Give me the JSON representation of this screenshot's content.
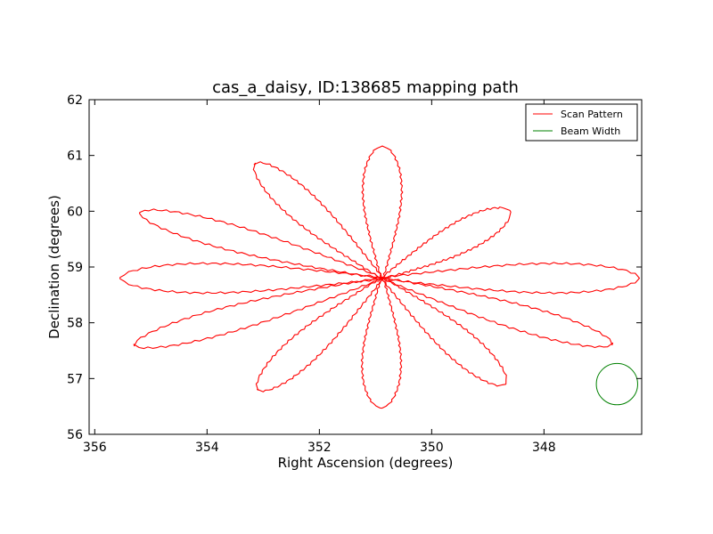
{
  "chart_data": {
    "type": "line",
    "title": "cas_a_daisy, ID:138685 mapping path",
    "xlabel": "Right Ascension (degrees)",
    "ylabel": "Declination (degrees)",
    "xlim": [
      356.1,
      346.26
    ],
    "ylim": [
      56,
      62
    ],
    "x_inverted": true,
    "xticks": [
      356,
      354,
      352,
      350,
      348
    ],
    "xtick_labels": [
      "356",
      "354",
      "352",
      "350",
      "348"
    ],
    "yticks": [
      56,
      57,
      58,
      59,
      60,
      61,
      62
    ],
    "ytick_labels": [
      "56",
      "57",
      "58",
      "59",
      "60",
      "61",
      "62"
    ],
    "grid": false,
    "legend_position": "top-right",
    "series": [
      {
        "name": "Scan Pattern",
        "color": "#ff0000",
        "pattern": "daisy",
        "center": [
          350.88,
          58.8
        ],
        "petals": [
          {
            "tip": [
              350.88,
              61.17
            ],
            "half_width": 0.5
          },
          {
            "tip": [
              348.6,
              60.0
            ],
            "half_width": 0.4
          },
          {
            "tip": [
              346.3,
              58.8
            ],
            "half_width": 0.38
          },
          {
            "tip": [
              346.78,
              57.62
            ],
            "half_width": 0.33
          },
          {
            "tip": [
              348.68,
              56.9
            ],
            "half_width": 0.4
          },
          {
            "tip": [
              350.9,
              56.47
            ],
            "half_width": 0.5
          },
          {
            "tip": [
              353.1,
              56.8
            ],
            "half_width": 0.4
          },
          {
            "tip": [
              355.3,
              57.6
            ],
            "half_width": 0.33
          },
          {
            "tip": [
              355.55,
              58.8
            ],
            "half_width": 0.38
          },
          {
            "tip": [
              355.2,
              59.97
            ],
            "half_width": 0.33
          },
          {
            "tip": [
              353.15,
              60.85
            ],
            "half_width": 0.4
          }
        ]
      },
      {
        "name": "Beam Width",
        "color": "#008000",
        "shape": "circle",
        "center": [
          346.7,
          56.9
        ],
        "radius_deg": 0.37
      }
    ],
    "legend": [
      "Scan Pattern",
      "Beam Width"
    ]
  }
}
